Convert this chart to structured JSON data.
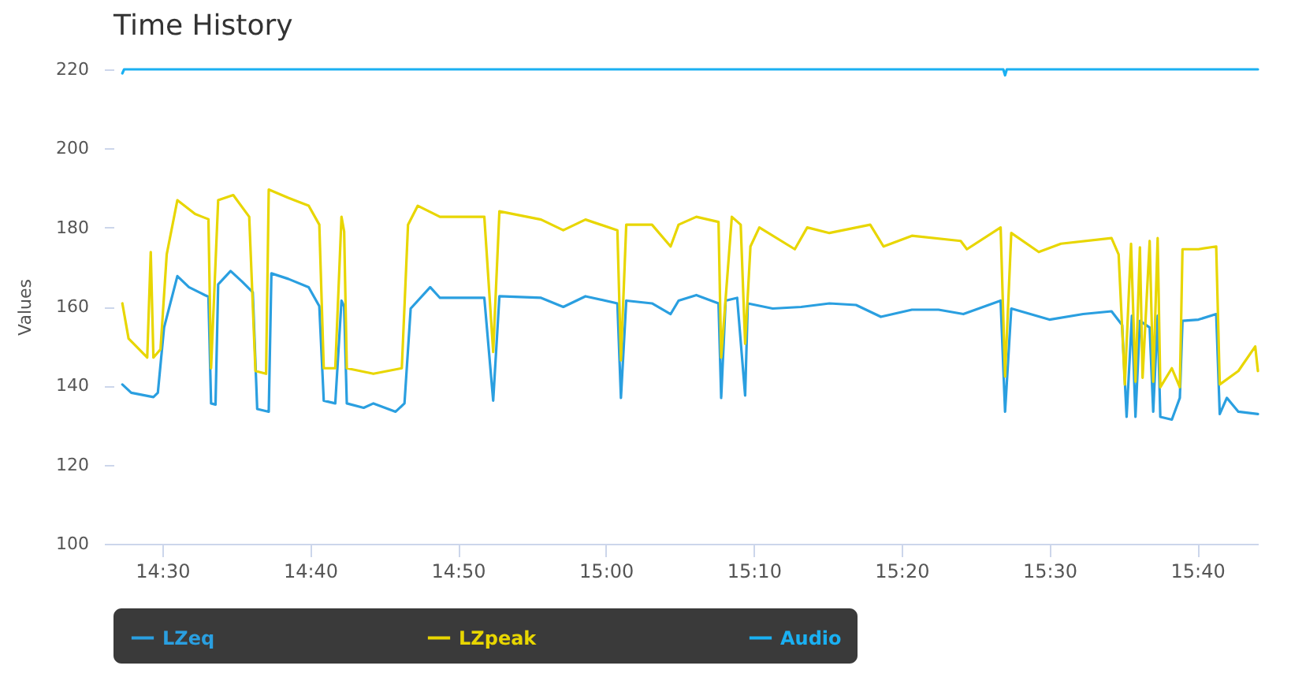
{
  "chart_data": {
    "type": "line",
    "title": "Time History",
    "ylabel": "Values",
    "legend": "bottom",
    "grid": false,
    "marker": "none",
    "xlim": [
      14.445,
      15.735
    ],
    "ylim": [
      100,
      220
    ],
    "yticks": [
      100,
      120,
      140,
      160,
      180,
      200,
      220
    ],
    "xticks": [
      {
        "value": 14.5,
        "label": "14:30"
      },
      {
        "value": 14.6667,
        "label": "14:40"
      },
      {
        "value": 14.8333,
        "label": "14:50"
      },
      {
        "value": 15,
        "label": "15:00"
      },
      {
        "value": 15.1667,
        "label": "15:10"
      },
      {
        "value": 15.3333,
        "label": "15:20"
      },
      {
        "value": 15.5,
        "label": "15:30"
      },
      {
        "value": 15.6667,
        "label": "15:40"
      }
    ],
    "series": [
      {
        "name": "LZeq",
        "color": "#2a9fe0",
        "x": [
          14.455,
          14.465,
          14.49,
          14.495,
          14.502,
          14.517,
          14.53,
          14.548,
          14.552,
          14.555,
          14.56,
          14.563,
          14.577,
          14.59,
          14.602,
          14.607,
          14.62,
          14.623,
          14.642,
          14.665,
          14.677,
          14.682,
          14.695,
          14.702,
          14.705,
          14.708,
          14.727,
          14.738,
          14.763,
          14.773,
          14.78,
          14.802,
          14.813,
          14.863,
          14.873,
          14.88,
          14.927,
          14.952,
          14.977,
          15.013,
          15.017,
          15.023,
          15.052,
          15.073,
          15.082,
          15.102,
          15.127,
          15.13,
          15.135,
          15.148,
          15.157,
          15.16,
          15.188,
          15.22,
          15.252,
          15.282,
          15.31,
          15.345,
          15.375,
          15.403,
          15.445,
          15.45,
          15.457,
          15.5,
          15.538,
          15.57,
          15.582,
          15.587,
          15.593,
          15.597,
          15.602,
          15.613,
          15.617,
          15.622,
          15.625,
          15.638,
          15.647,
          15.65,
          15.668,
          15.688,
          15.692,
          15.7,
          15.713,
          15.735
        ],
        "values": [
          140.3,
          138.2,
          137.1,
          138.2,
          154.7,
          167.7,
          164.9,
          162.9,
          162.5,
          135.5,
          135.2,
          165.6,
          169.0,
          166.3,
          163.6,
          134.1,
          133.4,
          168.4,
          167.0,
          164.9,
          160.1,
          136.2,
          135.5,
          161.5,
          160.0,
          135.5,
          134.4,
          135.5,
          133.4,
          135.5,
          159.5,
          164.9,
          162.2,
          162.2,
          136.2,
          162.6,
          162.2,
          159.9,
          162.6,
          160.8,
          136.9,
          161.5,
          160.8,
          158.1,
          161.5,
          162.9,
          160.8,
          136.9,
          161.5,
          162.2,
          137.5,
          160.8,
          159.5,
          159.9,
          160.8,
          160.4,
          157.4,
          159.2,
          159.2,
          158.1,
          161.5,
          133.4,
          159.5,
          156.7,
          158.1,
          158.8,
          155.3,
          132.1,
          157.7,
          132.1,
          156.4,
          154.7,
          133.4,
          157.7,
          132.1,
          131.4,
          136.9,
          156.4,
          156.7,
          158.1,
          132.8,
          136.9,
          133.4,
          132.8
        ]
      },
      {
        "name": "LZpeak",
        "color": "#e8d600",
        "x": [
          14.455,
          14.462,
          14.483,
          14.487,
          14.49,
          14.498,
          14.505,
          14.517,
          14.537,
          14.552,
          14.555,
          14.563,
          14.58,
          14.598,
          14.605,
          14.617,
          14.62,
          14.642,
          14.665,
          14.677,
          14.682,
          14.695,
          14.702,
          14.705,
          14.708,
          14.738,
          14.77,
          14.777,
          14.788,
          14.813,
          14.863,
          14.873,
          14.88,
          14.927,
          14.952,
          14.977,
          15.013,
          15.017,
          15.023,
          15.052,
          15.073,
          15.082,
          15.102,
          15.127,
          15.13,
          15.142,
          15.152,
          15.157,
          15.163,
          15.173,
          15.213,
          15.227,
          15.252,
          15.298,
          15.313,
          15.345,
          15.4,
          15.407,
          15.445,
          15.45,
          15.457,
          15.488,
          15.513,
          15.57,
          15.578,
          15.585,
          15.592,
          15.597,
          15.602,
          15.605,
          15.613,
          15.617,
          15.622,
          15.625,
          15.638,
          15.647,
          15.65,
          15.668,
          15.688,
          15.692,
          15.713,
          15.732,
          15.735
        ],
        "values": [
          160.8,
          151.9,
          147.1,
          173.8,
          147.1,
          149.2,
          173.2,
          186.9,
          183.4,
          182.1,
          144.4,
          186.9,
          188.2,
          182.7,
          143.7,
          143.0,
          189.6,
          187.5,
          185.5,
          180.7,
          144.4,
          144.4,
          182.7,
          179.0,
          144.4,
          143.0,
          144.4,
          180.7,
          185.5,
          182.7,
          182.7,
          148.5,
          184.1,
          182.0,
          179.3,
          182.0,
          179.3,
          146.4,
          180.7,
          180.7,
          175.2,
          180.7,
          182.7,
          181.4,
          147.1,
          182.7,
          180.7,
          150.6,
          175.2,
          180.0,
          174.5,
          180.0,
          178.6,
          180.7,
          175.2,
          177.9,
          176.6,
          174.5,
          180.0,
          142.3,
          178.6,
          173.8,
          175.9,
          177.3,
          173.2,
          140.3,
          175.9,
          141.0,
          175.0,
          142.0,
          176.6,
          141.0,
          177.3,
          139.6,
          144.4,
          139.6,
          174.5,
          174.5,
          175.2,
          140.3,
          143.7,
          149.9,
          143.7
        ]
      },
      {
        "name": "Audio",
        "color": "#1ab0f2",
        "x": [
          14.455,
          14.457,
          15.448,
          15.45,
          15.452,
          15.735
        ],
        "values": [
          219,
          220,
          220,
          218.5,
          220,
          220
        ]
      }
    ]
  }
}
